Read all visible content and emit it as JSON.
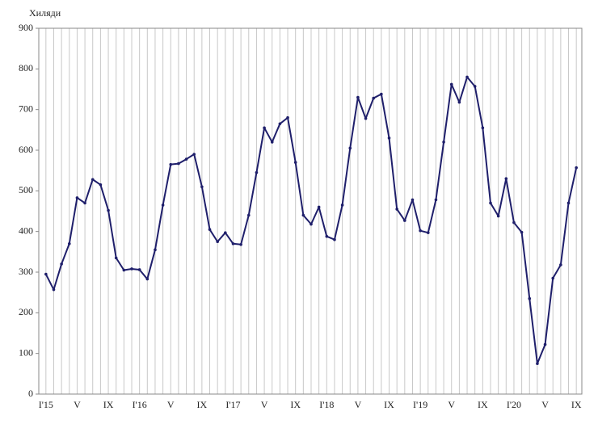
{
  "chart_data": {
    "type": "line",
    "y_label": "Хиляди",
    "categories": [
      "I'15",
      null,
      null,
      null,
      "V",
      null,
      null,
      null,
      "IX",
      null,
      null,
      null,
      "I'16",
      null,
      null,
      null,
      "V",
      null,
      null,
      null,
      "IX",
      null,
      null,
      null,
      "I'17",
      null,
      null,
      null,
      "V",
      null,
      null,
      null,
      "IX",
      null,
      null,
      null,
      "I'18",
      null,
      null,
      null,
      "V",
      null,
      null,
      null,
      "IX",
      null,
      null,
      null,
      "I'19",
      null,
      null,
      null,
      "V",
      null,
      null,
      null,
      "IX",
      null,
      null,
      null,
      "I'20",
      null,
      null,
      null,
      "V",
      null,
      null,
      null,
      "IX"
    ],
    "values": [
      295,
      257,
      320,
      370,
      483,
      470,
      528,
      515,
      452,
      335,
      305,
      308,
      306,
      283,
      355,
      465,
      565,
      567,
      578,
      590,
      510,
      405,
      375,
      397,
      370,
      368,
      440,
      545,
      655,
      620,
      665,
      680,
      570,
      440,
      418,
      460,
      388,
      380,
      465,
      605,
      730,
      678,
      728,
      738,
      630,
      455,
      427,
      478,
      402,
      397,
      478,
      620,
      762,
      718,
      780,
      757,
      655,
      470,
      438,
      530,
      422,
      398,
      235,
      75,
      122,
      285,
      318,
      470,
      557
    ],
    "color": "#1f1f6b",
    "ylim": [
      0,
      900
    ],
    "yticks": [
      0,
      100,
      200,
      300,
      400,
      500,
      600,
      700,
      800,
      900
    ],
    "grid": true
  }
}
